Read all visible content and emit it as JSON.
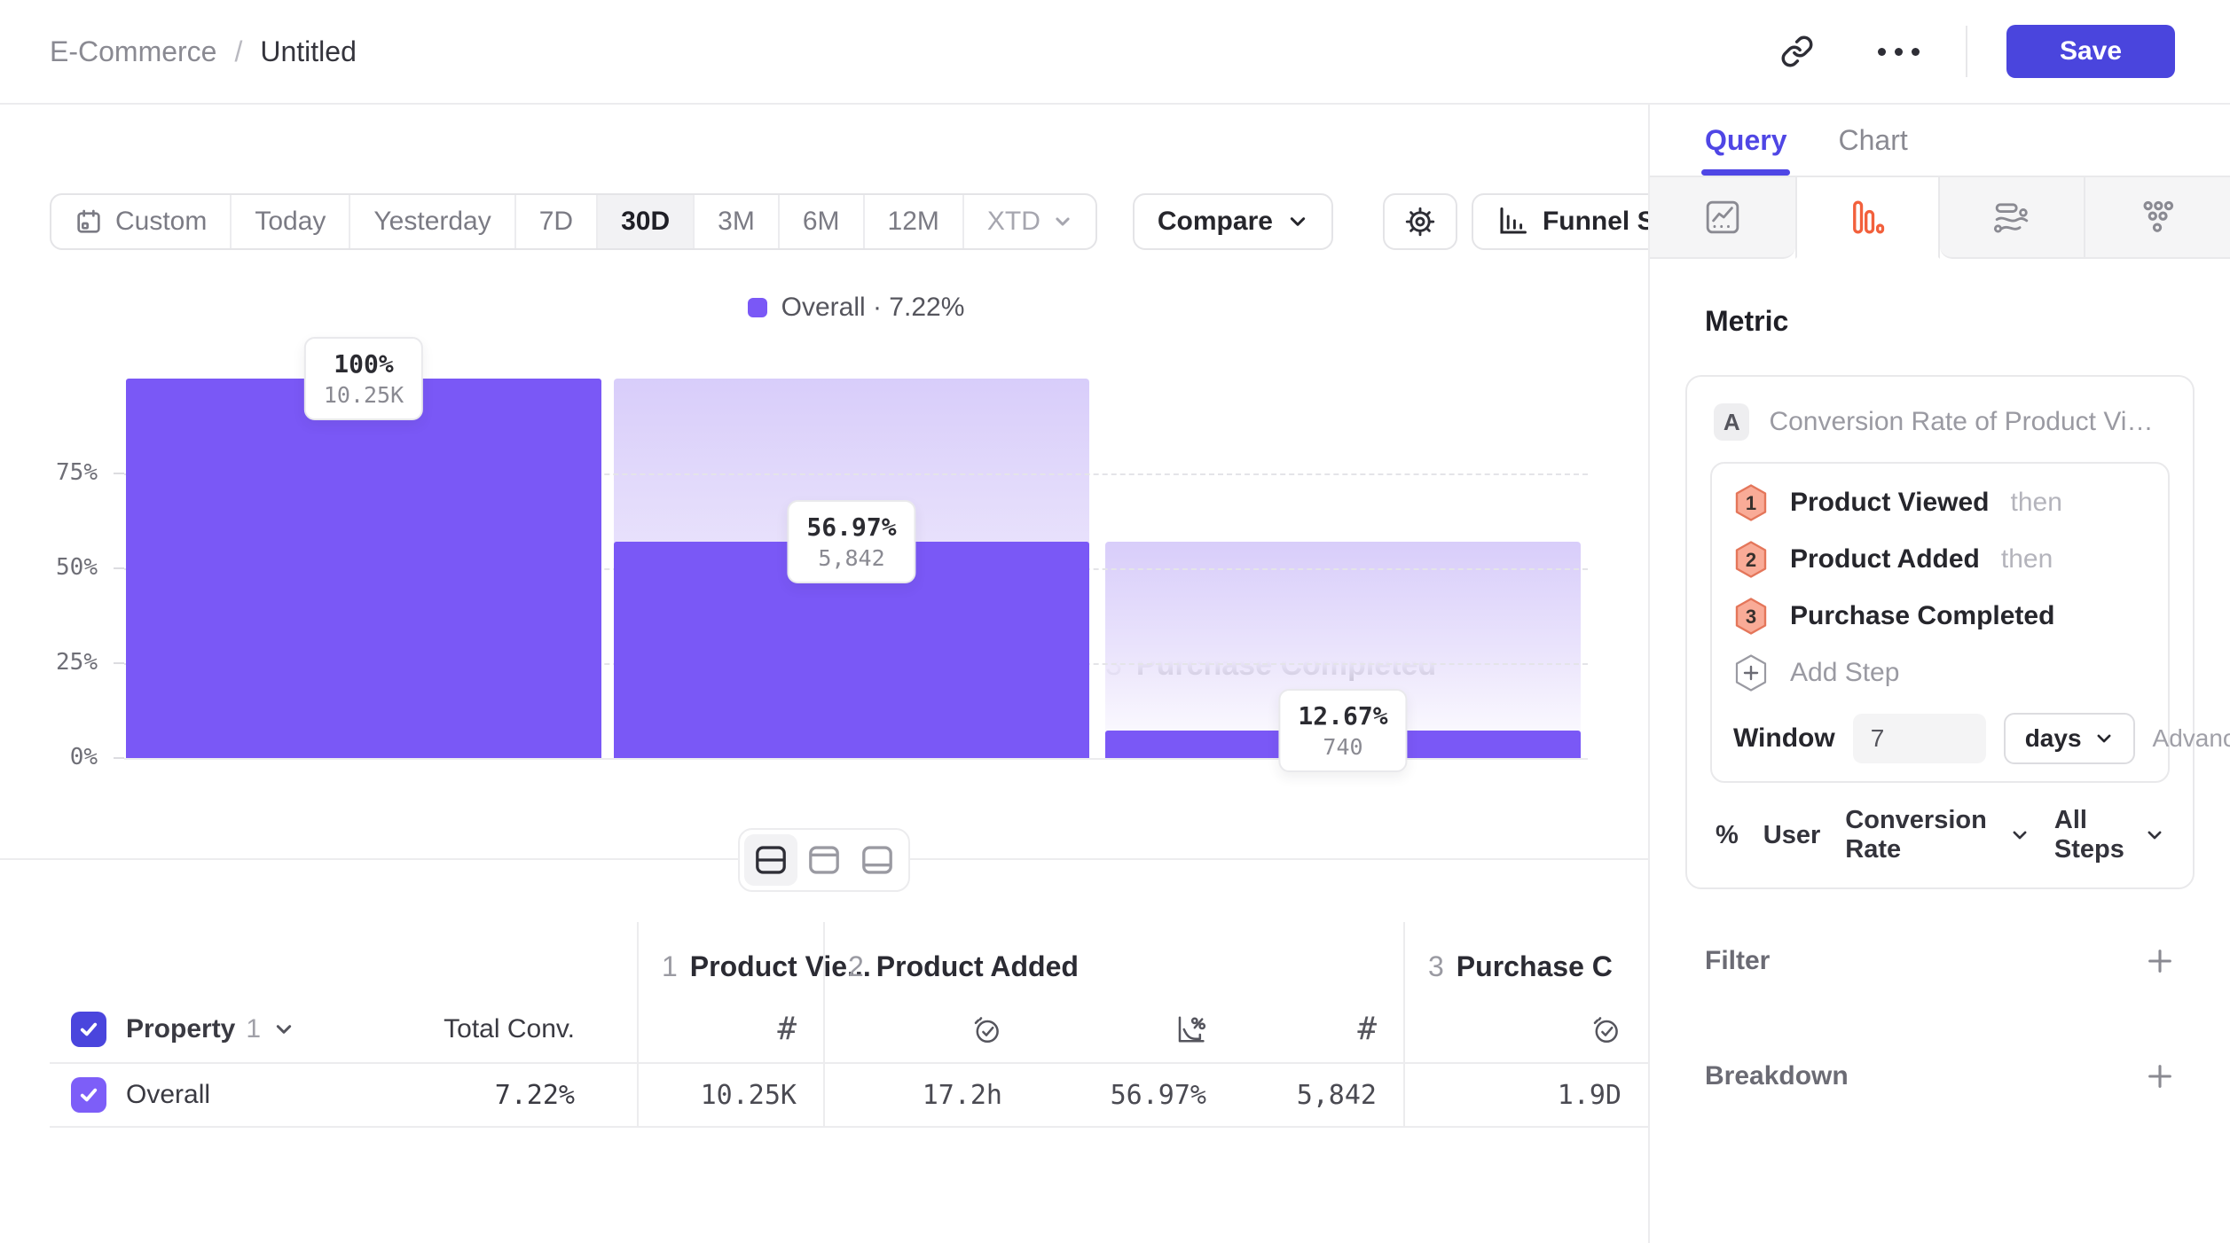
{
  "header": {
    "breadcrumb_project": "E-Commerce",
    "breadcrumb_sep": "/",
    "breadcrumb_title": "Untitled",
    "save_label": "Save"
  },
  "toolbar": {
    "ranges": [
      {
        "label": "Custom"
      },
      {
        "label": "Today"
      },
      {
        "label": "Yesterday"
      },
      {
        "label": "7D"
      },
      {
        "label": "30D"
      },
      {
        "label": "3M"
      },
      {
        "label": "6M"
      },
      {
        "label": "12M"
      },
      {
        "label": "XTD"
      }
    ],
    "selected_range": "30D",
    "compare_label": "Compare",
    "chart_type_label": "Funnel Steps"
  },
  "chart_data": {
    "type": "funnel-bar",
    "title": "Overall · 7.22%",
    "series_name": "Overall",
    "overall_conversion_pct": 7.22,
    "legend_label": "Overall · 7.22%",
    "legend_position": "top-center",
    "categories": [
      "Product Viewed",
      "Product Added",
      "Purchase Completed"
    ],
    "step_numbers": [
      "1",
      "2",
      "3"
    ],
    "values_pct_of_first": [
      100,
      56.97,
      7.22
    ],
    "conversion_from_previous_pct": [
      100,
      56.97,
      12.67
    ],
    "counts": [
      10250,
      5842,
      740
    ],
    "labels_pct": [
      "100%",
      "56.97%",
      "12.67%"
    ],
    "labels_count": [
      "10.25K",
      "5,842",
      "740"
    ],
    "ytick_labels": [
      "75%",
      "50%",
      "25%",
      "0%"
    ],
    "ylim": [
      0,
      100
    ],
    "grid": "dashed-horizontal",
    "bar_color": "#7a58f6",
    "ghost_color": "#d8cdfa"
  },
  "table": {
    "property_label": "Property",
    "property_index": "1",
    "total_conv_label": "Total Conv.",
    "col1_num": "1",
    "col1_name": "Product Vie...",
    "col2_num": "2",
    "col2_name": "Product Added",
    "col3_num": "3",
    "col3_name": "Purchase C",
    "row": {
      "name": "Overall",
      "total_conv": "7.22%",
      "v1": "10.25K",
      "v2_time": "17.2h",
      "v2_conv": "56.97%",
      "v2_count": "5,842",
      "v3_time": "1.9D"
    }
  },
  "icons": {
    "hash": "#"
  },
  "panel": {
    "tab_query": "Query",
    "tab_chart": "Chart",
    "metric_heading": "Metric",
    "metric_letter": "A",
    "metric_summary": "Conversion Rate of Product View...",
    "steps": [
      {
        "num": "1",
        "name": "Product Viewed",
        "suffix": "then"
      },
      {
        "num": "2",
        "name": "Product Added",
        "suffix": "then"
      },
      {
        "num": "3",
        "name": "Purchase Completed",
        "suffix": ""
      }
    ],
    "add_step_label": "Add Step",
    "window_label": "Window",
    "window_value": "7",
    "window_unit": "days",
    "advanced_label": "Advanced",
    "footer_pct": "%",
    "footer_user": "User",
    "footer_measure": "Conversion Rate",
    "footer_scope": "All Steps",
    "filter_label": "Filter",
    "breakdown_label": "Breakdown"
  }
}
